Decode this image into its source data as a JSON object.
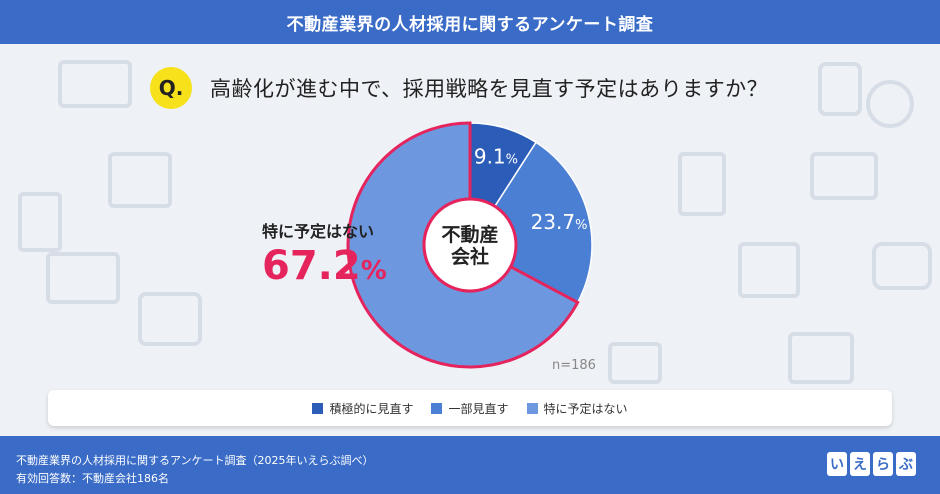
{
  "header": {
    "title": "不動産業界の人材採用に関するアンケート調査"
  },
  "question": {
    "badge": "Q.",
    "text": "高齢化が進む中で、採用戦略を見直す予定はありますか？"
  },
  "chart_data": {
    "type": "pie",
    "center_label": [
      "不動産",
      "会社"
    ],
    "n_label": "n=186",
    "categories": [
      "積極的に見直す",
      "一部見直す",
      "特に予定はない"
    ],
    "values": [
      9.1,
      23.7,
      67.2
    ],
    "value_labels": [
      "9.1",
      "23.7",
      "67.2"
    ],
    "unit": "%",
    "colors": [
      "#2b5cb8",
      "#4a7fd4",
      "#6d98e0"
    ],
    "highlight": {
      "index": 2,
      "label": "特に予定はない",
      "value": "67.2",
      "color": "#e5245d"
    },
    "legend": [
      "積極的に見直す",
      "一部見直す",
      "特に予定はない"
    ],
    "legend_position": "bottom"
  },
  "footer": {
    "source": "不動産業界の人材採用に関するアンケート調査（2025年いえらぶ調べ）",
    "respondents": "有効回答数：不動産会社186名",
    "logo": [
      "い",
      "え",
      "ら",
      "ぶ"
    ]
  }
}
